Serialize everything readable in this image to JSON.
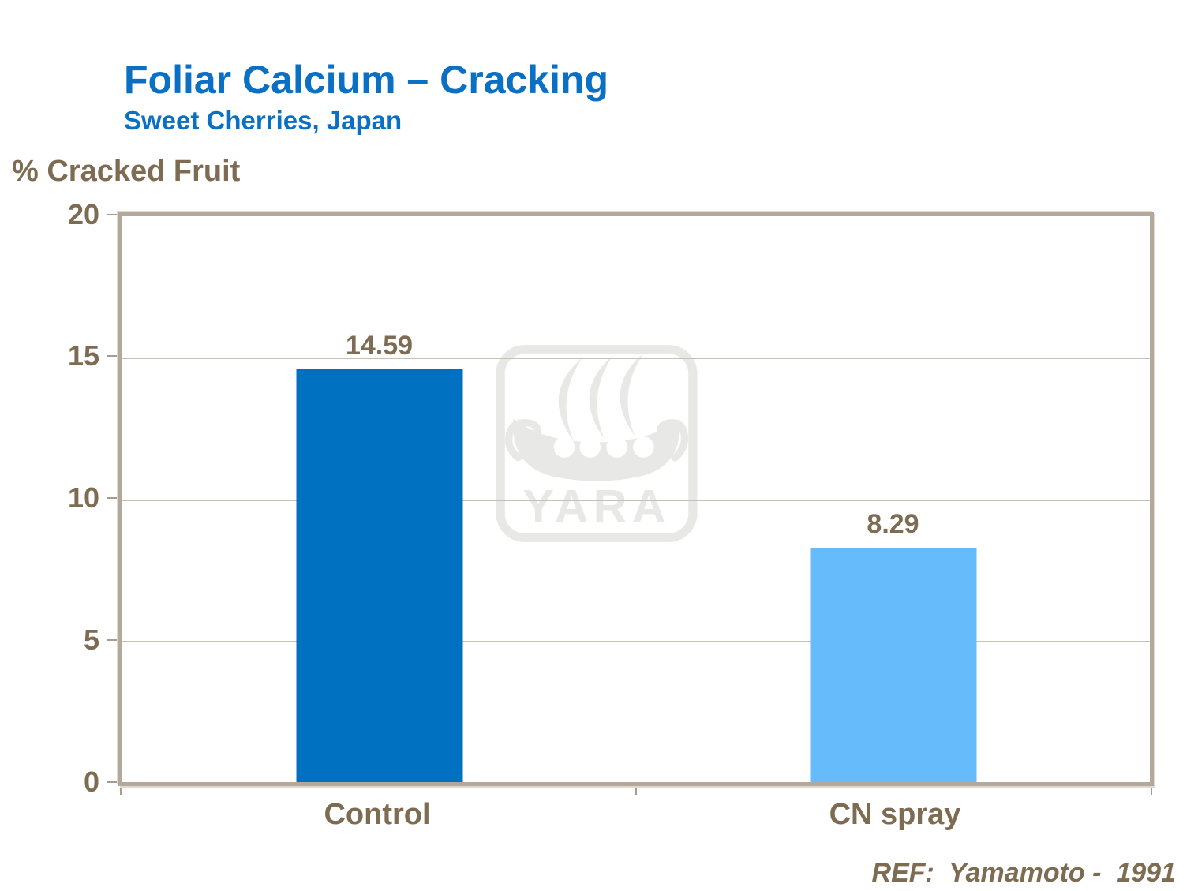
{
  "slide": {
    "title": "Foliar Calcium – Cracking",
    "subtitle": "Sweet Cherries, Japan",
    "reference": "REF:  Yamamoto -  1991"
  },
  "chart_data": {
    "type": "bar",
    "title": "Foliar Calcium – Cracking",
    "subtitle": "Sweet Cherries, Japan",
    "ylabel": "% Cracked Fruit",
    "xlabel": "",
    "categories": [
      "Control",
      "CN spray"
    ],
    "values": [
      14.59,
      8.29
    ],
    "value_labels": [
      "14.59",
      "8.29"
    ],
    "bar_colors": [
      "#0070c0",
      "#66bbfa"
    ],
    "ylim": [
      0,
      20
    ],
    "yticks": [
      "0",
      "5",
      "10",
      "15",
      "20"
    ],
    "grid": true,
    "legend": false,
    "plot_border_color": "#b3a89c",
    "label_color": "#7d6b52",
    "reference": "REF:  Yamamoto -  1991",
    "watermark": "YARA"
  },
  "watermark": {
    "brand_text": "YARA",
    "color": "#e8e8e6"
  },
  "colors": {
    "title_blue": "#0a70c4",
    "text_brown": "#7d6b52",
    "axis_line": "#b3a89c",
    "gridline": "#c9c0b4",
    "bar_control": "#0070c0",
    "bar_cn_spray": "#66bbfa",
    "watermark_gray": "#e8e8e6",
    "background": "#ffffff"
  }
}
